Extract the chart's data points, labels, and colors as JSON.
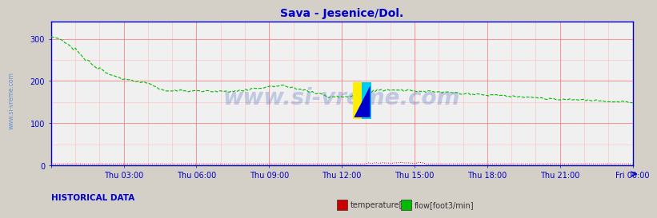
{
  "title": "Sava - Jesenice/Dol.",
  "title_color": "#0000cc",
  "title_fontsize": 10,
  "bg_color": "#d4d0c8",
  "plot_bg_color": "#f0f0f0",
  "watermark": "www.si-vreme.com",
  "watermark_color": "#3355bb",
  "watermark_alpha": 0.25,
  "ylim": [
    0,
    340
  ],
  "yticks": [
    0,
    100,
    200,
    300
  ],
  "x_tick_labels": [
    "Thu 03:00",
    "Thu 06:00",
    "Thu 09:00",
    "Thu 12:00",
    "Thu 15:00",
    "Thu 18:00",
    "Thu 21:00",
    "Fri 00:00"
  ],
  "x_tick_positions_frac": [
    0.125,
    0.25,
    0.375,
    0.5,
    0.625,
    0.75,
    0.875,
    1.0
  ],
  "grid_major_color": "#ff8888",
  "grid_minor_color": "#ffbbbb",
  "axis_color": "#0000cc",
  "tick_color": "#0000cc",
  "left_label": "www.si-vreme.com",
  "left_label_color": "#5588cc",
  "legend_items": [
    "temperature[F]",
    "flow[foot3/min]"
  ],
  "legend_colors": [
    "#cc0000",
    "#00bb00"
  ],
  "historical_text": "HISTORICAL DATA",
  "historical_color": "#0000cc",
  "temp_color": "#cc0000",
  "flow_color": "#00bb00",
  "n_points": 288
}
